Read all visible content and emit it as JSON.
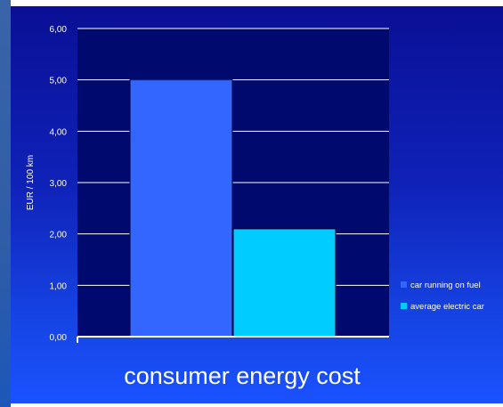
{
  "chart_data": {
    "type": "bar",
    "title": "consumer energy cost",
    "xlabel": "",
    "ylabel": "EUR / 100 km",
    "ylim": [
      0,
      6
    ],
    "yticks": [
      "0,00",
      "1,00",
      "2,00",
      "3,00",
      "4,00",
      "5,00",
      "6,00"
    ],
    "grid": true,
    "legend_position": "right",
    "series": [
      {
        "name": "car running on fuel",
        "value": 5.0,
        "color": "#3366ff"
      },
      {
        "name": "average electric car",
        "value": 2.1,
        "color": "#00ccff"
      }
    ]
  }
}
